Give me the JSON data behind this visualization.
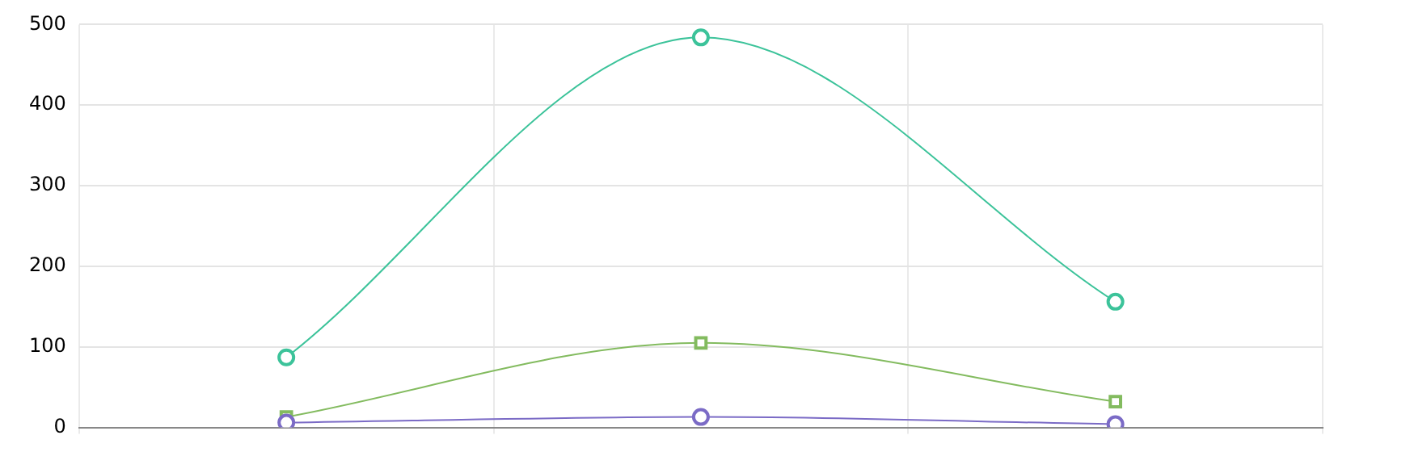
{
  "chart_data": {
    "type": "line",
    "categories": [
      null,
      null,
      null
    ],
    "series": [
      {
        "color": "#3cc39a",
        "values": [
          87,
          484,
          156
        ],
        "marker": "circle"
      },
      {
        "color": "#83bb5f",
        "values": [
          13,
          105,
          32
        ],
        "marker": "square"
      },
      {
        "color": "#7b6bc6",
        "values": [
          6,
          13,
          4
        ],
        "marker": "circle"
      }
    ],
    "ylim": [
      0,
      500
    ],
    "yticks": [
      0,
      100,
      200,
      300,
      400,
      500
    ],
    "grid": true,
    "legend": false,
    "tick_labels": "y"
  }
}
